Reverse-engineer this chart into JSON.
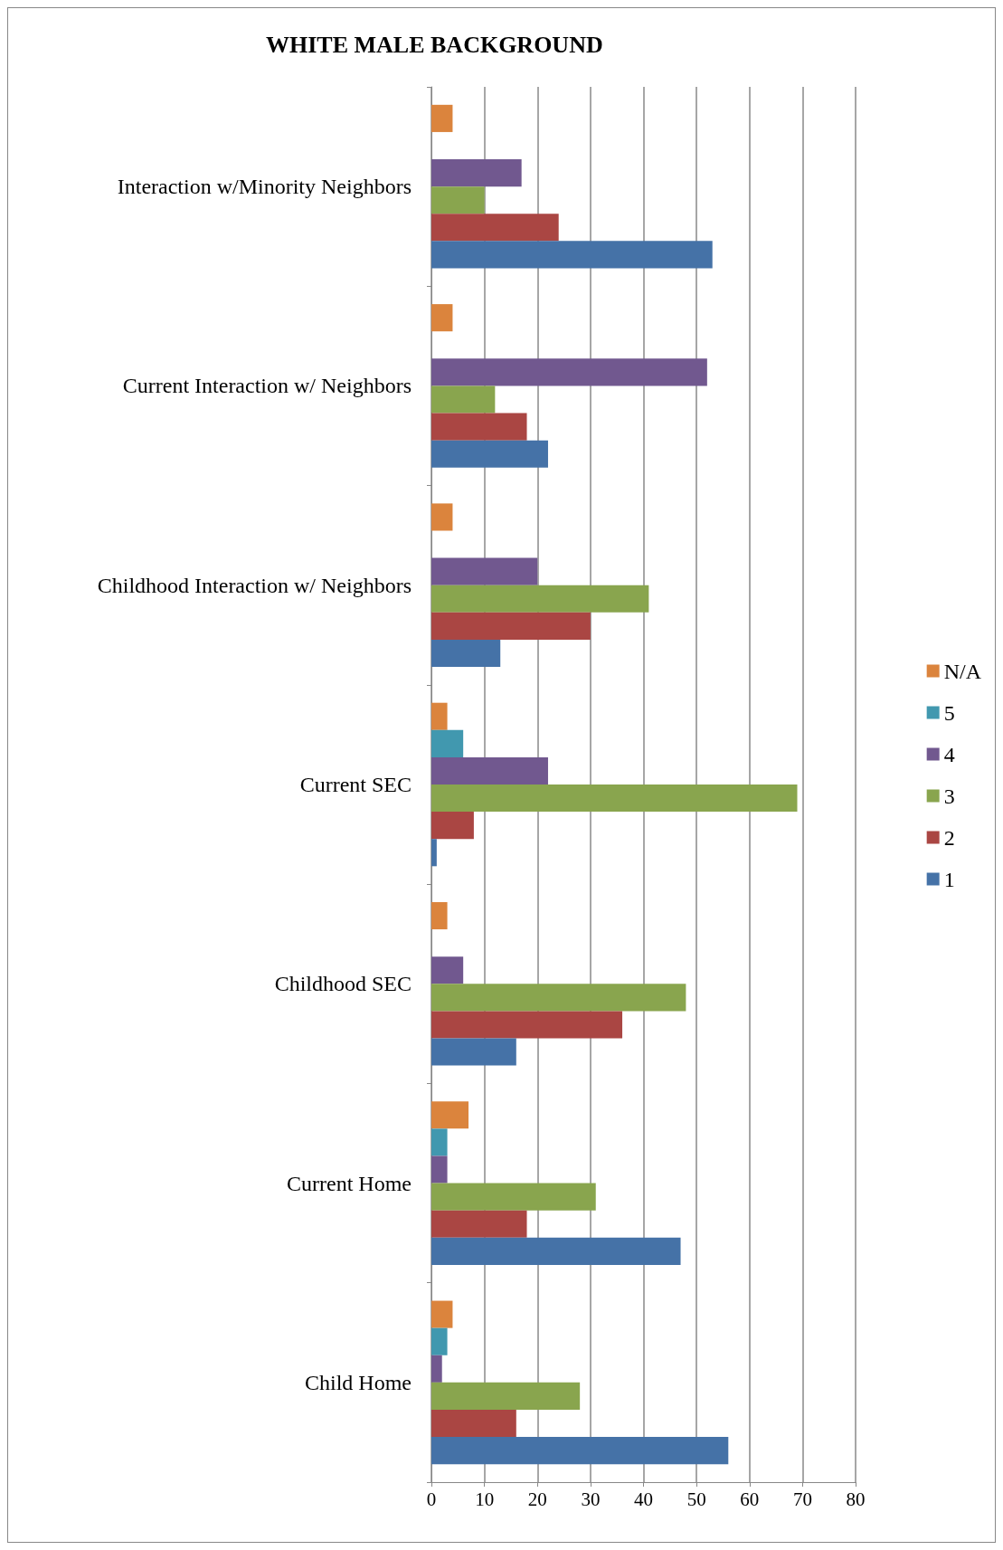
{
  "chart_data": {
    "type": "bar",
    "orientation": "horizontal",
    "title": "WHITE MALE BACKGROUND",
    "categories": [
      "Interaction w/Minority Neighbors",
      "Current Interaction w/ Neighbors",
      "Childhood Interaction w/ Neighbors",
      "Current SEC",
      "Childhood SEC",
      "Current Home",
      "Child Home"
    ],
    "series": [
      {
        "name": "N/A",
        "color": "#db843d",
        "values": [
          4,
          4,
          4,
          3,
          3,
          7,
          4
        ]
      },
      {
        "name": "5",
        "color": "#4198af",
        "values": [
          null,
          null,
          null,
          6,
          null,
          3,
          3
        ]
      },
      {
        "name": "4",
        "color": "#71588f",
        "values": [
          17,
          52,
          20,
          22,
          6,
          3,
          2
        ]
      },
      {
        "name": "3",
        "color": "#89a54e",
        "values": [
          10,
          12,
          41,
          69,
          48,
          31,
          28
        ]
      },
      {
        "name": "2",
        "color": "#aa4643",
        "values": [
          24,
          18,
          30,
          8,
          36,
          18,
          16
        ]
      },
      {
        "name": "1",
        "color": "#4572a7",
        "values": [
          53,
          22,
          13,
          1,
          16,
          47,
          56
        ]
      }
    ],
    "xlim": [
      0,
      80
    ],
    "xticks": [
      0,
      10,
      20,
      30,
      40,
      50,
      60,
      70,
      80
    ],
    "grid": "x",
    "legend": "right"
  }
}
